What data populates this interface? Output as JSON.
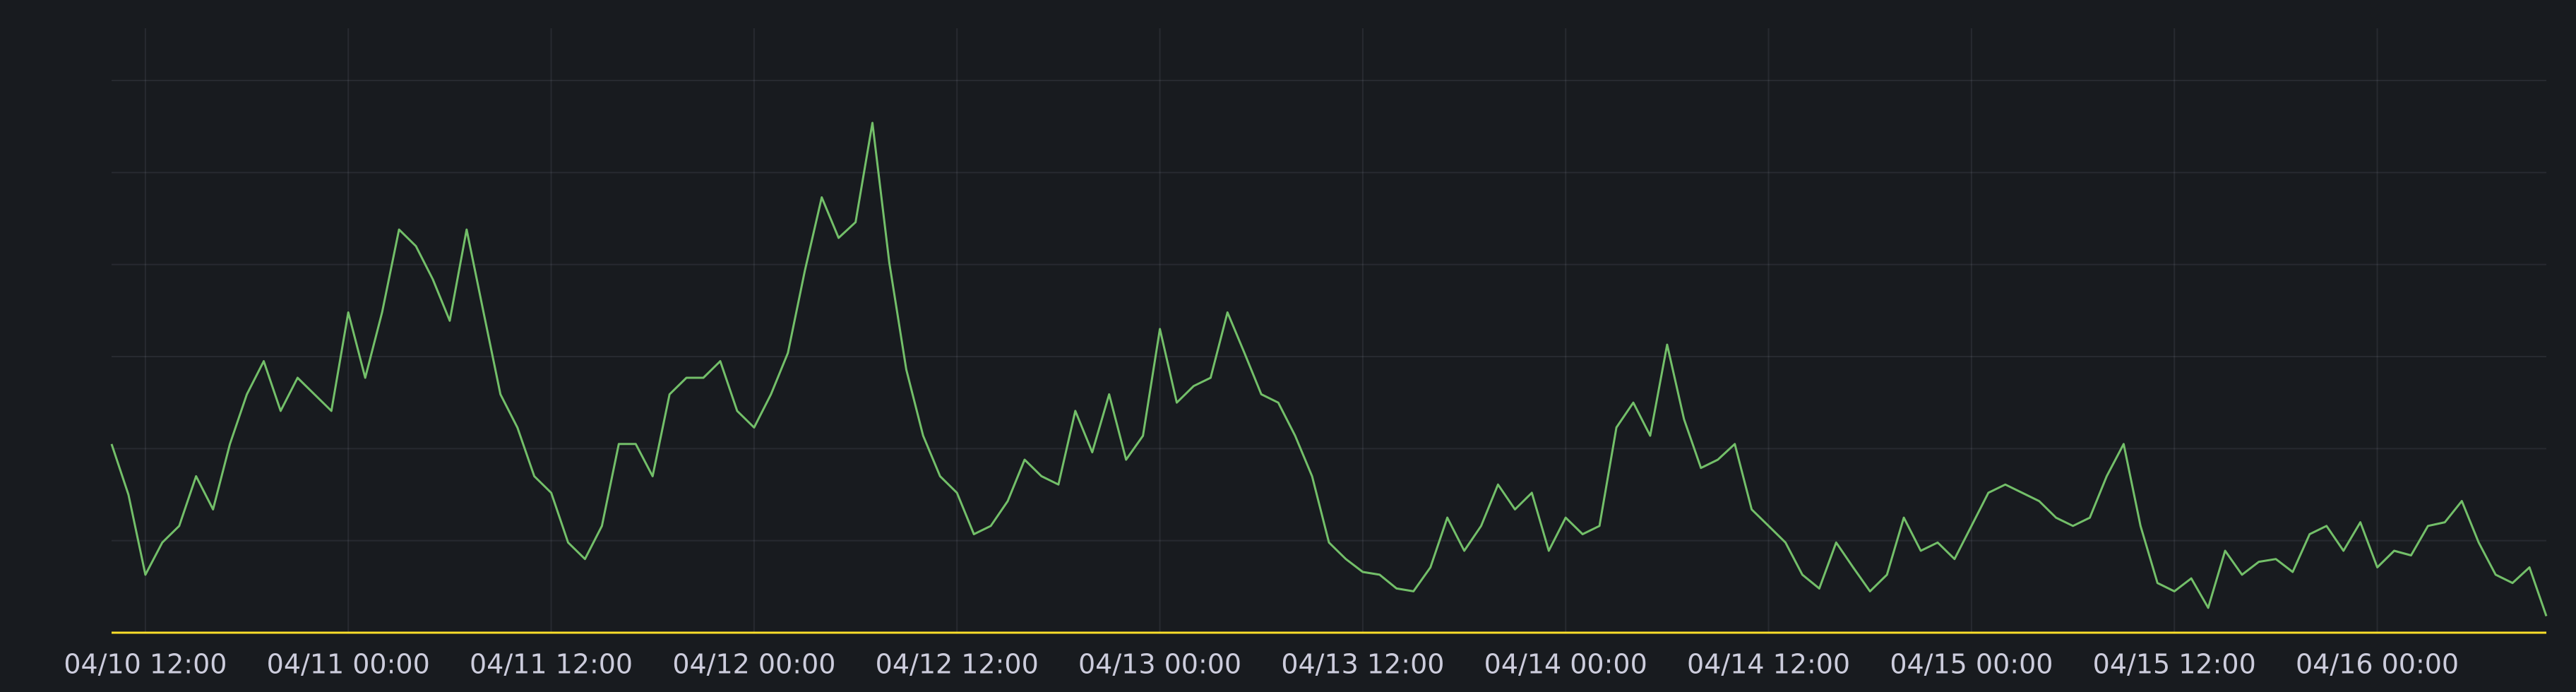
{
  "chart_data": {
    "type": "line",
    "x": [
      "04/10 10:00",
      "04/10 11:00",
      "04/10 12:00",
      "04/10 13:00",
      "04/10 14:00",
      "04/10 15:00",
      "04/10 16:00",
      "04/10 17:00",
      "04/10 18:00",
      "04/10 19:00",
      "04/10 20:00",
      "04/10 21:00",
      "04/10 22:00",
      "04/10 23:00",
      "04/11 00:00",
      "04/11 01:00",
      "04/11 02:00",
      "04/11 03:00",
      "04/11 04:00",
      "04/11 05:00",
      "04/11 06:00",
      "04/11 07:00",
      "04/11 08:00",
      "04/11 09:00",
      "04/11 10:00",
      "04/11 11:00",
      "04/11 12:00",
      "04/11 13:00",
      "04/11 14:00",
      "04/11 15:00",
      "04/11 16:00",
      "04/11 17:00",
      "04/11 18:00",
      "04/11 19:00",
      "04/11 20:00",
      "04/11 21:00",
      "04/11 22:00",
      "04/11 23:00",
      "04/12 00:00",
      "04/12 01:00",
      "04/12 02:00",
      "04/12 03:00",
      "04/12 04:00",
      "04/12 05:00",
      "04/12 06:00",
      "04/12 07:00",
      "04/12 08:00",
      "04/12 09:00",
      "04/12 10:00",
      "04/12 11:00",
      "04/12 12:00",
      "04/12 13:00",
      "04/12 14:00",
      "04/12 15:00",
      "04/12 16:00",
      "04/12 17:00",
      "04/12 18:00",
      "04/12 19:00",
      "04/12 20:00",
      "04/12 21:00",
      "04/12 22:00",
      "04/12 23:00",
      "04/13 00:00",
      "04/13 01:00",
      "04/13 02:00",
      "04/13 03:00",
      "04/13 04:00",
      "04/13 05:00",
      "04/13 06:00",
      "04/13 07:00",
      "04/13 08:00",
      "04/13 09:00",
      "04/13 10:00",
      "04/13 11:00",
      "04/13 12:00",
      "04/13 13:00",
      "04/13 14:00",
      "04/13 15:00",
      "04/13 16:00",
      "04/13 17:00",
      "04/13 18:00",
      "04/13 19:00",
      "04/13 20:00",
      "04/13 21:00",
      "04/13 22:00",
      "04/13 23:00",
      "04/14 00:00",
      "04/14 01:00",
      "04/14 02:00",
      "04/14 03:00",
      "04/14 04:00",
      "04/14 05:00",
      "04/14 06:00",
      "04/14 07:00",
      "04/14 08:00",
      "04/14 09:00",
      "04/14 10:00",
      "04/14 11:00",
      "04/14 12:00",
      "04/14 13:00",
      "04/14 14:00",
      "04/14 15:00",
      "04/14 16:00",
      "04/14 17:00",
      "04/14 18:00",
      "04/14 19:00",
      "04/14 20:00",
      "04/14 21:00",
      "04/14 22:00",
      "04/14 23:00",
      "04/15 00:00",
      "04/15 01:00",
      "04/15 02:00",
      "04/15 03:00",
      "04/15 04:00",
      "04/15 05:00",
      "04/15 06:00",
      "04/15 07:00",
      "04/15 08:00",
      "04/15 09:00",
      "04/15 10:00",
      "04/15 11:00",
      "04/15 12:00",
      "04/15 13:00",
      "04/15 14:00",
      "04/15 15:00",
      "04/15 16:00",
      "04/15 17:00",
      "04/15 18:00",
      "04/15 19:00",
      "04/15 20:00",
      "04/15 21:00",
      "04/15 22:00",
      "04/15 23:00",
      "04/16 00:00",
      "04/16 01:00",
      "04/16 02:00",
      "04/16 03:00",
      "04/16 04:00",
      "04/16 05:00",
      "04/16 06:00",
      "04/16 07:00",
      "04/16 08:00",
      "04/16 09:00",
      "04/16 10:00"
    ],
    "series": [
      {
        "color": "#73bf69",
        "values": [
          2.05,
          1.5,
          0.63,
          0.98,
          1.16,
          1.7,
          1.34,
          2.05,
          2.59,
          2.95,
          2.41,
          2.77,
          2.59,
          2.41,
          3.48,
          2.77,
          3.48,
          4.38,
          4.2,
          3.84,
          3.39,
          4.38,
          3.48,
          2.59,
          2.23,
          1.7,
          1.52,
          0.98,
          0.8,
          1.16,
          2.05,
          2.05,
          1.7,
          2.59,
          2.77,
          2.77,
          2.95,
          2.41,
          2.23,
          2.59,
          3.04,
          3.93,
          4.73,
          4.29,
          4.46,
          5.54,
          4.02,
          2.86,
          2.14,
          1.7,
          1.52,
          1.07,
          1.16,
          1.43,
          1.88,
          1.7,
          1.61,
          2.41,
          1.96,
          2.59,
          1.88,
          2.14,
          3.3,
          2.5,
          2.68,
          2.77,
          3.48,
          3.04,
          2.59,
          2.5,
          2.14,
          1.7,
          0.98,
          0.8,
          0.66,
          0.63,
          0.48,
          0.45,
          0.71,
          1.25,
          0.89,
          1.16,
          1.61,
          1.34,
          1.52,
          0.89,
          1.25,
          1.07,
          1.16,
          2.23,
          2.5,
          2.14,
          3.13,
          2.32,
          1.79,
          1.88,
          2.05,
          1.34,
          1.16,
          0.98,
          0.63,
          0.48,
          0.98,
          0.71,
          0.45,
          0.63,
          1.25,
          0.89,
          0.98,
          0.8,
          1.16,
          1.52,
          1.61,
          1.52,
          1.43,
          1.25,
          1.16,
          1.25,
          1.7,
          2.05,
          1.16,
          0.54,
          0.45,
          0.59,
          0.27,
          0.89,
          0.63,
          0.77,
          0.8,
          0.66,
          1.07,
          1.16,
          0.89,
          1.2,
          0.71,
          0.89,
          0.84,
          1.16,
          1.2,
          1.43,
          0.98,
          0.63,
          0.54,
          0.71,
          0.18
        ]
      },
      {
        "color": "#fade2a",
        "values": [
          0,
          0,
          0,
          0,
          0,
          0,
          0,
          0,
          0,
          0,
          0,
          0,
          0,
          0,
          0,
          0,
          0,
          0,
          0,
          0,
          0,
          0,
          0,
          0,
          0,
          0,
          0,
          0,
          0,
          0,
          0,
          0,
          0,
          0,
          0,
          0,
          0,
          0,
          0,
          0,
          0,
          0,
          0,
          0,
          0,
          0,
          0,
          0,
          0,
          0,
          0,
          0,
          0,
          0,
          0,
          0,
          0,
          0,
          0,
          0,
          0,
          0,
          0,
          0,
          0,
          0,
          0,
          0,
          0,
          0,
          0,
          0,
          0,
          0,
          0,
          0,
          0,
          0,
          0,
          0,
          0,
          0,
          0,
          0,
          0,
          0,
          0,
          0,
          0,
          0,
          0,
          0,
          0,
          0,
          0,
          0,
          0,
          0,
          0,
          0,
          0,
          0,
          0,
          0,
          0,
          0,
          0,
          0,
          0,
          0,
          0,
          0,
          0,
          0,
          0,
          0,
          0,
          0,
          0,
          0,
          0,
          0,
          0,
          0,
          0,
          0,
          0,
          0,
          0,
          0,
          0,
          0,
          0,
          0,
          0,
          0,
          0,
          0,
          0,
          0,
          0,
          0,
          0,
          0,
          0
        ]
      }
    ],
    "xlim": [
      "04/10 10:00",
      "04/16 10:00"
    ],
    "xticks": [
      "04/10 12:00",
      "04/11 00:00",
      "04/11 12:00",
      "04/12 00:00",
      "04/12 12:00",
      "04/13 00:00",
      "04/13 12:00",
      "04/14 00:00",
      "04/14 12:00",
      "04/15 00:00",
      "04/15 12:00",
      "04/16 00:00"
    ],
    "ylim": [
      0,
      6
    ],
    "yticks": [
      0,
      1,
      2,
      3,
      4,
      5,
      6
    ],
    "grid": true
  }
}
